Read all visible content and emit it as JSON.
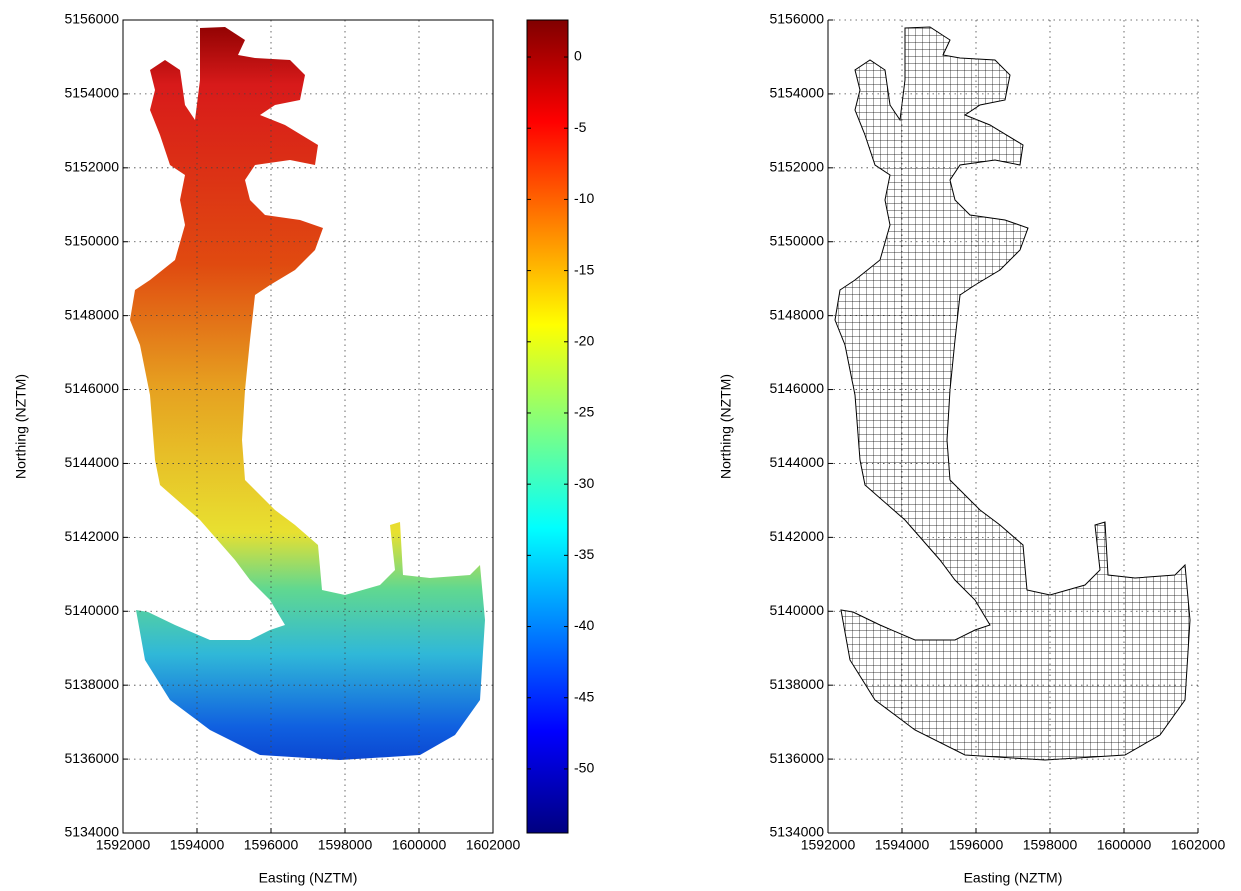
{
  "chart_data": [
    {
      "type": "pcolor",
      "xlabel": "Easting (NZTM)",
      "ylabel": "Northing (NZTM)",
      "xlim": [
        1592000,
        1602000
      ],
      "ylim": [
        5134000,
        5156000
      ],
      "xticks": [
        1592000,
        1594000,
        1596000,
        1598000,
        1600000,
        1602000
      ],
      "yticks": [
        5134000,
        5136000,
        5138000,
        5140000,
        5142000,
        5144000,
        5146000,
        5148000,
        5150000,
        5152000,
        5154000,
        5156000
      ],
      "grid": true,
      "box": true,
      "colorbar": {
        "clim": [
          -54.5,
          2.6
        ],
        "ticks": [
          0,
          -5,
          -10,
          -15,
          -20,
          -25,
          -30,
          -35,
          -40,
          -45,
          -50
        ],
        "colormap": "jet"
      }
    },
    {
      "type": "mesh",
      "xlabel": "Easting (NZTM)",
      "ylabel": "Northing (NZTM)",
      "xlim": [
        1592000,
        1602000
      ],
      "ylim": [
        5134000,
        5156000
      ],
      "xticks": [
        1592000,
        1594000,
        1596000,
        1598000,
        1600000,
        1602000
      ],
      "yticks": [
        5134000,
        5136000,
        5138000,
        5140000,
        5142000,
        5144000,
        5146000,
        5148000,
        5150000,
        5152000,
        5154000,
        5156000
      ],
      "grid": true,
      "box": false
    }
  ]
}
